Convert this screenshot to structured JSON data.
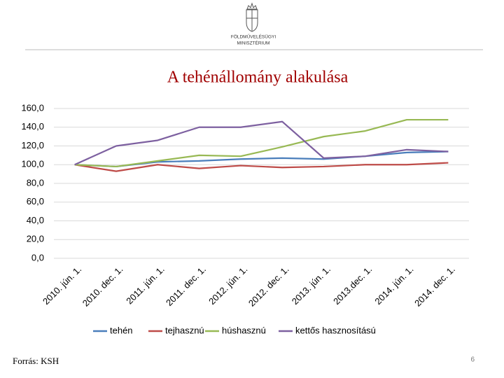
{
  "header": {
    "ministry": [
      "FÖLDMŰVELÉSÜGYI",
      "MINISZTÉRIUM"
    ]
  },
  "chart_data": {
    "type": "line",
    "title": "A tehénállomány alakulása",
    "categories": [
      "2010. jún. 1.",
      "2010. dec. 1.",
      "2011. jún. 1.",
      "2011. dec. 1.",
      "2012. jún. 1.",
      "2012. dec. 1.",
      "2013. jún. 1.",
      "2013.dec. 1.",
      "2014. jún. 1.",
      "2014. dec. 1."
    ],
    "series": [
      {
        "name": "tehén",
        "color": "#4a7ebb",
        "values": [
          100,
          98,
          103,
          104,
          106,
          107,
          106,
          109,
          113,
          114
        ]
      },
      {
        "name": "tejhasznú",
        "color": "#be4b48",
        "values": [
          100,
          93,
          100,
          96,
          99,
          97,
          98,
          100,
          100,
          102
        ]
      },
      {
        "name": "húshasznú",
        "color": "#98b954",
        "values": [
          100,
          98,
          104,
          110,
          109,
          119,
          130,
          136,
          148,
          148
        ]
      },
      {
        "name": "kettős hasznosítású",
        "color": "#7d60a0",
        "values": [
          100,
          120,
          126,
          140,
          140,
          146,
          107,
          109,
          116,
          114
        ]
      }
    ],
    "ylim": [
      0,
      160
    ],
    "yticks": [
      {
        "value": 0,
        "label": "0,0"
      },
      {
        "value": 20,
        "label": "20,0"
      },
      {
        "value": 40,
        "label": "40,0"
      },
      {
        "value": 60,
        "label": "60,0"
      },
      {
        "value": 80,
        "label": "80,0"
      },
      {
        "value": 100,
        "label": "100,0"
      },
      {
        "value": 120,
        "label": "120,0"
      },
      {
        "value": 140,
        "label": "140,0"
      },
      {
        "value": 160,
        "label": "160,0"
      }
    ],
    "grid": true,
    "legend": "bottom"
  },
  "footer": {
    "source": "Forrás: KSH",
    "page": "6"
  }
}
